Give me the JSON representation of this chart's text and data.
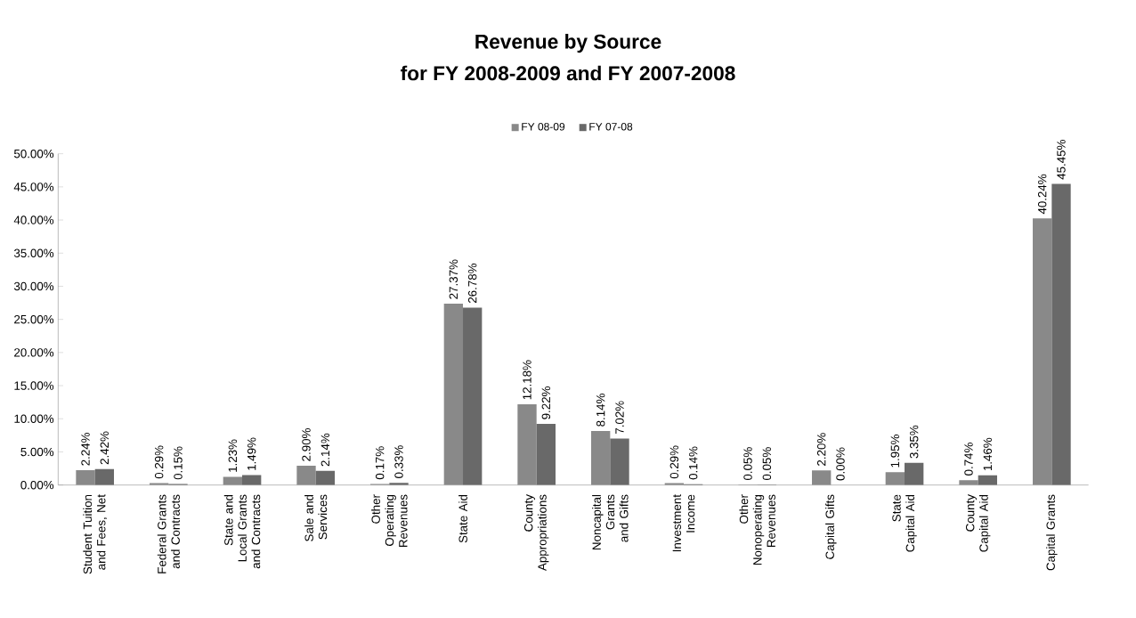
{
  "chart_data": {
    "type": "bar",
    "title": "Revenue by Source",
    "subtitle": "for FY 2008-2009 and FY 2007-2008",
    "categories": [
      "Student Tuition and Fees, Net",
      "Federal Grants and Contracts",
      "State and Local Grants and Contracts",
      "Sale and Services",
      "Other Operating Revenues",
      "State Aid",
      "County Appropriations",
      "Noncapital Grants and Gifts",
      "Investment Income",
      "Other Nonoperating Revenues",
      "Capital Gifts",
      "State Capital Aid",
      "County Capital Aid",
      "Capital Grants"
    ],
    "series": [
      {
        "name": "FY 08-09",
        "color": "#898989",
        "values": [
          2.24,
          0.29,
          1.23,
          2.9,
          0.17,
          27.37,
          12.18,
          8.14,
          0.29,
          0.05,
          2.2,
          1.95,
          0.74,
          40.24
        ],
        "value_labels": [
          "2.24%",
          "0.29%",
          "1.23%",
          "2.90%",
          "0.17%",
          "27.37%",
          "12.18%",
          "8.14%",
          "0.29%",
          "0.05%",
          "2.20%",
          "1.95%",
          "0.74%",
          "40.24%"
        ]
      },
      {
        "name": "FY 07-08",
        "color": "#696969",
        "values": [
          2.42,
          0.15,
          1.49,
          2.14,
          0.33,
          26.78,
          9.22,
          7.02,
          0.14,
          0.05,
          0.0,
          3.35,
          1.46,
          45.45
        ],
        "value_labels": [
          "2.42%",
          "0.15%",
          "1.49%",
          "2.14%",
          "0.33%",
          "26.78%",
          "9.22%",
          "7.02%",
          "0.14%",
          "0.05%",
          "0.00%",
          "3.35%",
          "1.46%",
          "45.45%"
        ]
      }
    ],
    "ylim": [
      0,
      50
    ],
    "yticks": [
      {
        "value": 0,
        "label": "0.00%"
      },
      {
        "value": 5,
        "label": "5.00%"
      },
      {
        "value": 10,
        "label": "10.00%"
      },
      {
        "value": 15,
        "label": "15.00%"
      },
      {
        "value": 20,
        "label": "20.00%"
      },
      {
        "value": 25,
        "label": "25.00%"
      },
      {
        "value": 30,
        "label": "30.00%"
      },
      {
        "value": 35,
        "label": "35.00%"
      },
      {
        "value": 40,
        "label": "40.00%"
      },
      {
        "value": 45,
        "label": "45.00%"
      },
      {
        "value": 50,
        "label": "50.00%"
      }
    ],
    "legend": "top",
    "grid": false
  }
}
